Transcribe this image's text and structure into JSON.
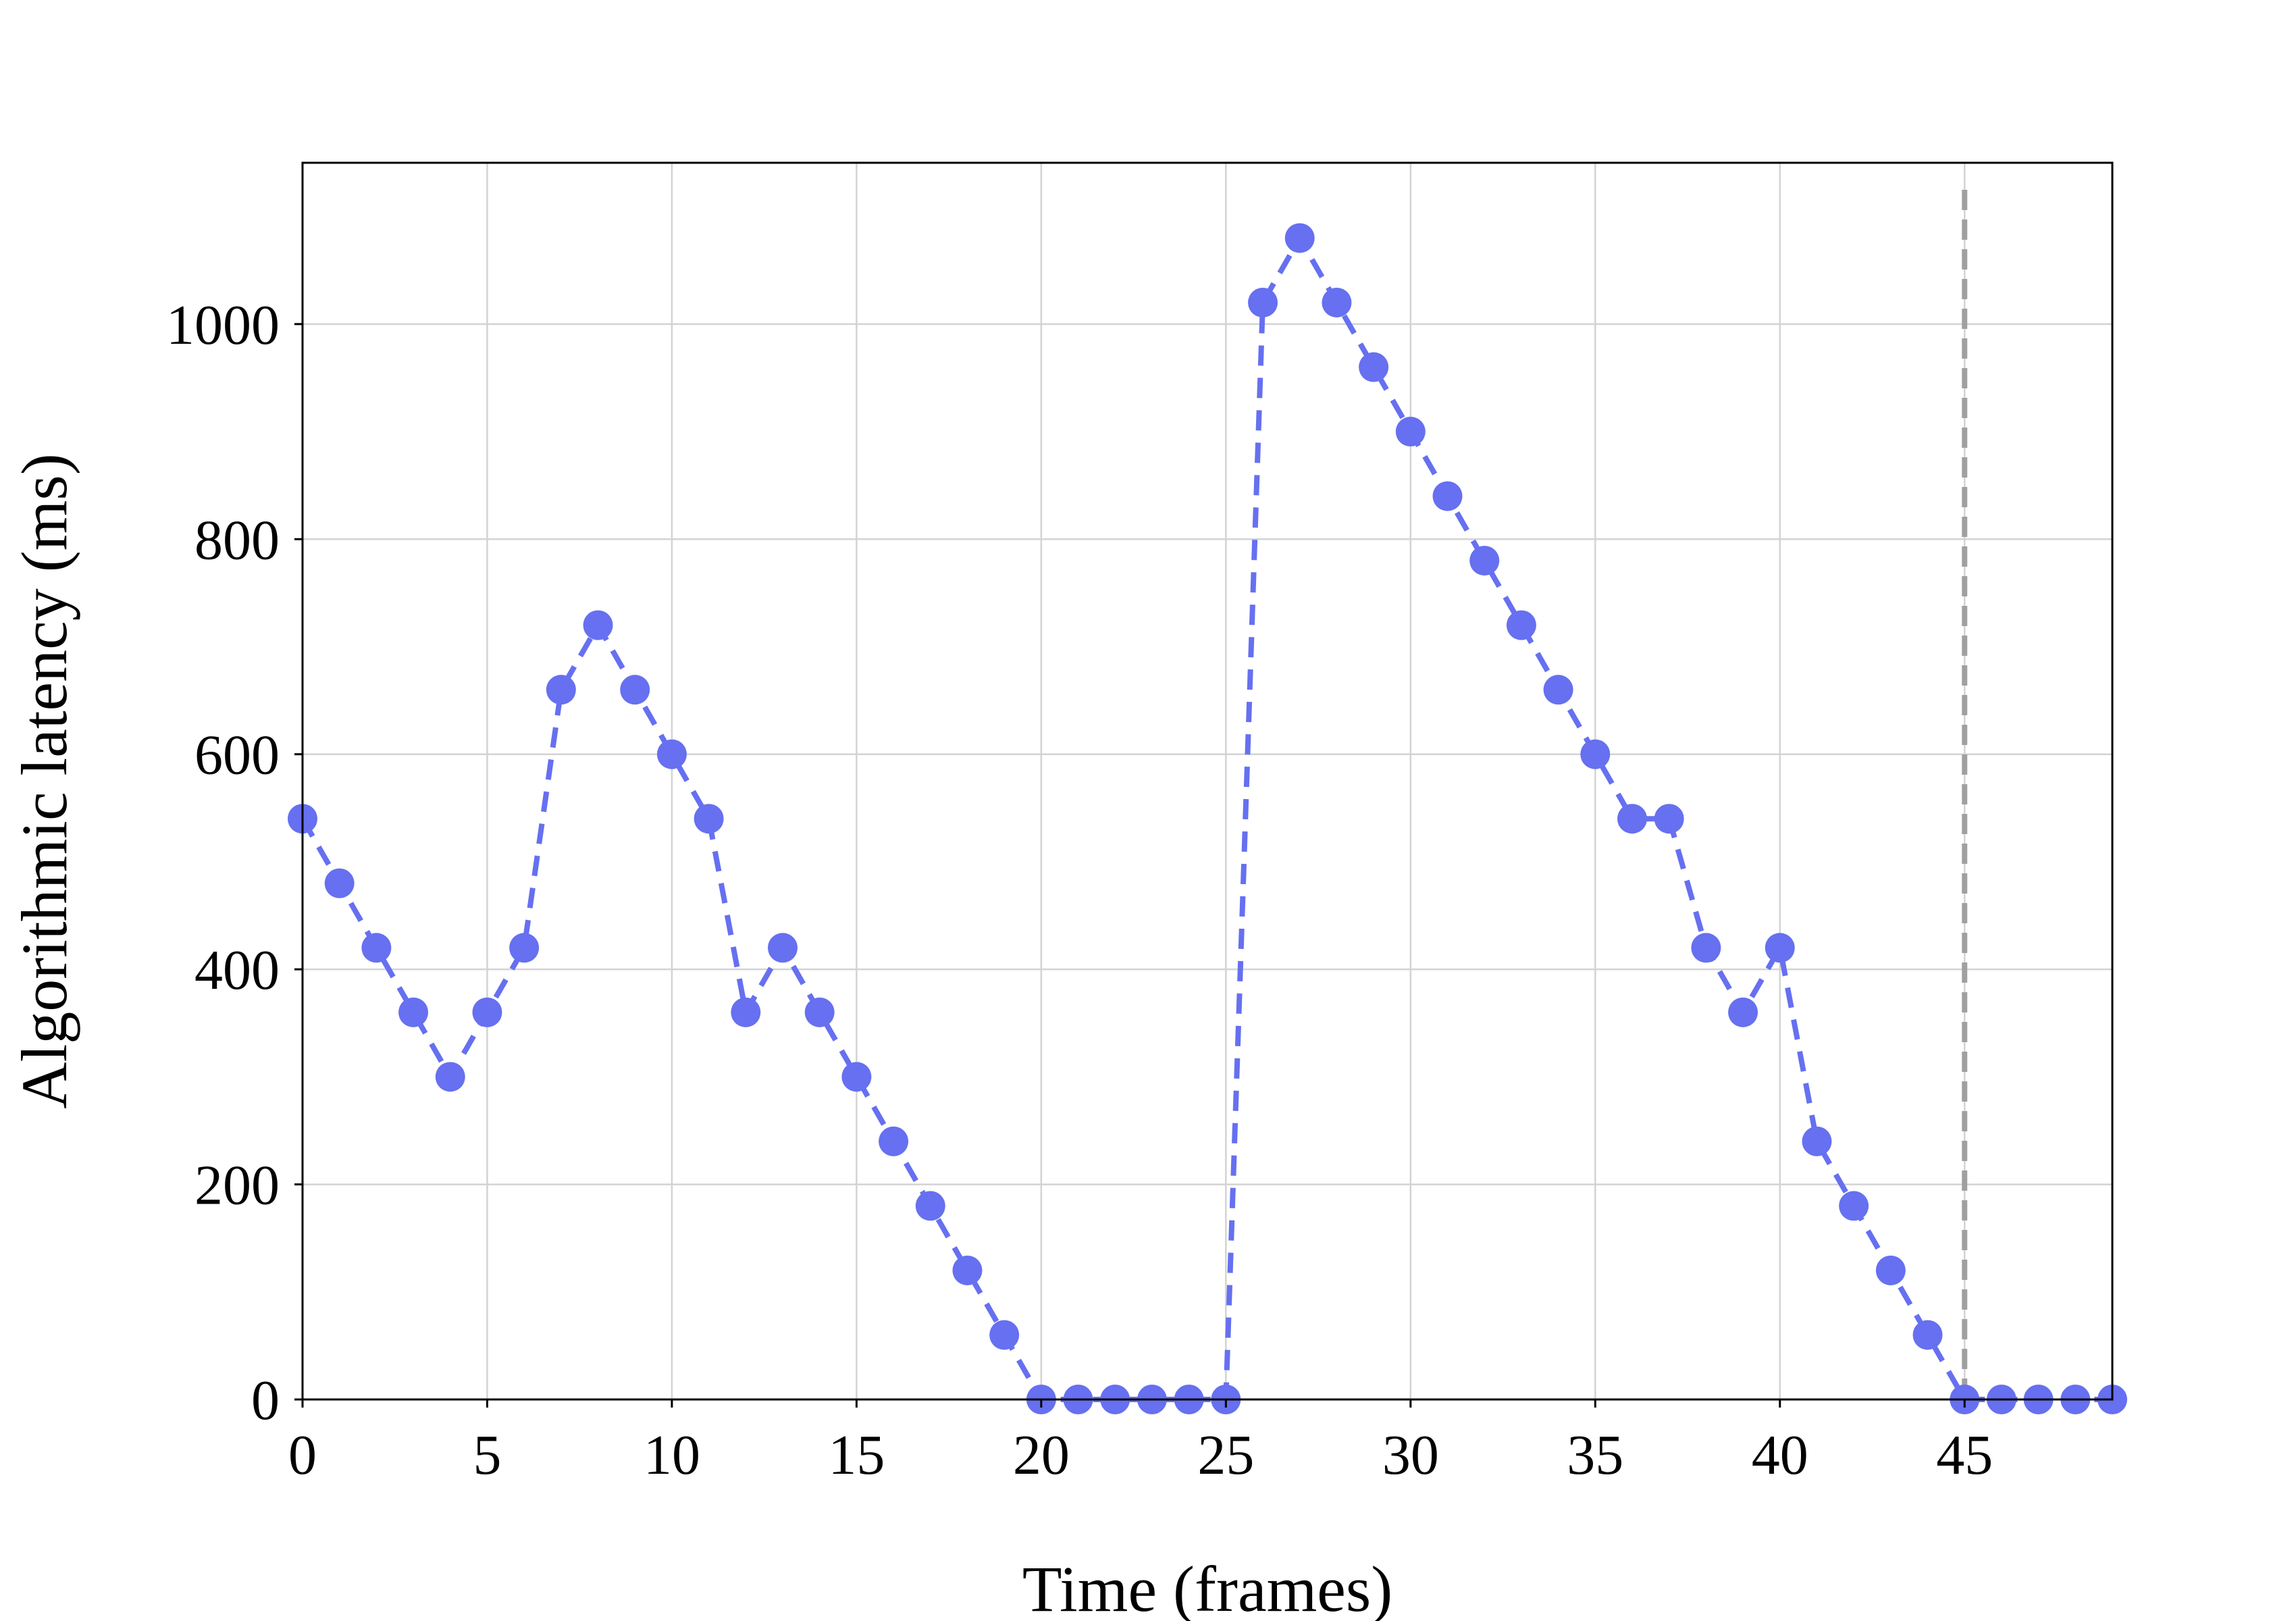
{
  "chart_data": {
    "type": "line",
    "title": "",
    "xlabel": "Time (frames)",
    "ylabel": "Algorithmic latency (ms)",
    "xlim": [
      0,
      49
    ],
    "ylim": [
      0,
      1150
    ],
    "xticks": [
      0,
      5,
      10,
      15,
      20,
      25,
      30,
      35,
      40,
      45
    ],
    "yticks": [
      0,
      200,
      400,
      600,
      800,
      1000
    ],
    "grid": true,
    "legend": "none",
    "series": [
      {
        "color": "#6670f0",
        "line_style": "dashed",
        "marker": "circle",
        "x": [
          0,
          1,
          2,
          3,
          4,
          5,
          6,
          7,
          8,
          9,
          10,
          11,
          12,
          13,
          14,
          15,
          16,
          17,
          18,
          19,
          20,
          21,
          22,
          23,
          24,
          25,
          26,
          27,
          28,
          29,
          30,
          31,
          32,
          33,
          34,
          35,
          36,
          37,
          38,
          39,
          40,
          41,
          42,
          43,
          44,
          45,
          46,
          47,
          48,
          49
        ],
        "y": [
          540,
          480,
          420,
          360,
          300,
          360,
          420,
          660,
          720,
          660,
          600,
          540,
          360,
          420,
          360,
          300,
          240,
          180,
          120,
          60,
          0,
          0,
          0,
          0,
          0,
          0,
          1020,
          1080,
          1020,
          960,
          900,
          840,
          780,
          720,
          660,
          600,
          540,
          540,
          420,
          360,
          420,
          240,
          180,
          120,
          60,
          0,
          0,
          0,
          0,
          0
        ]
      }
    ],
    "vertical_reference_line": {
      "x": 45,
      "color": "#a0a0a0",
      "line_style": "dashed"
    }
  }
}
